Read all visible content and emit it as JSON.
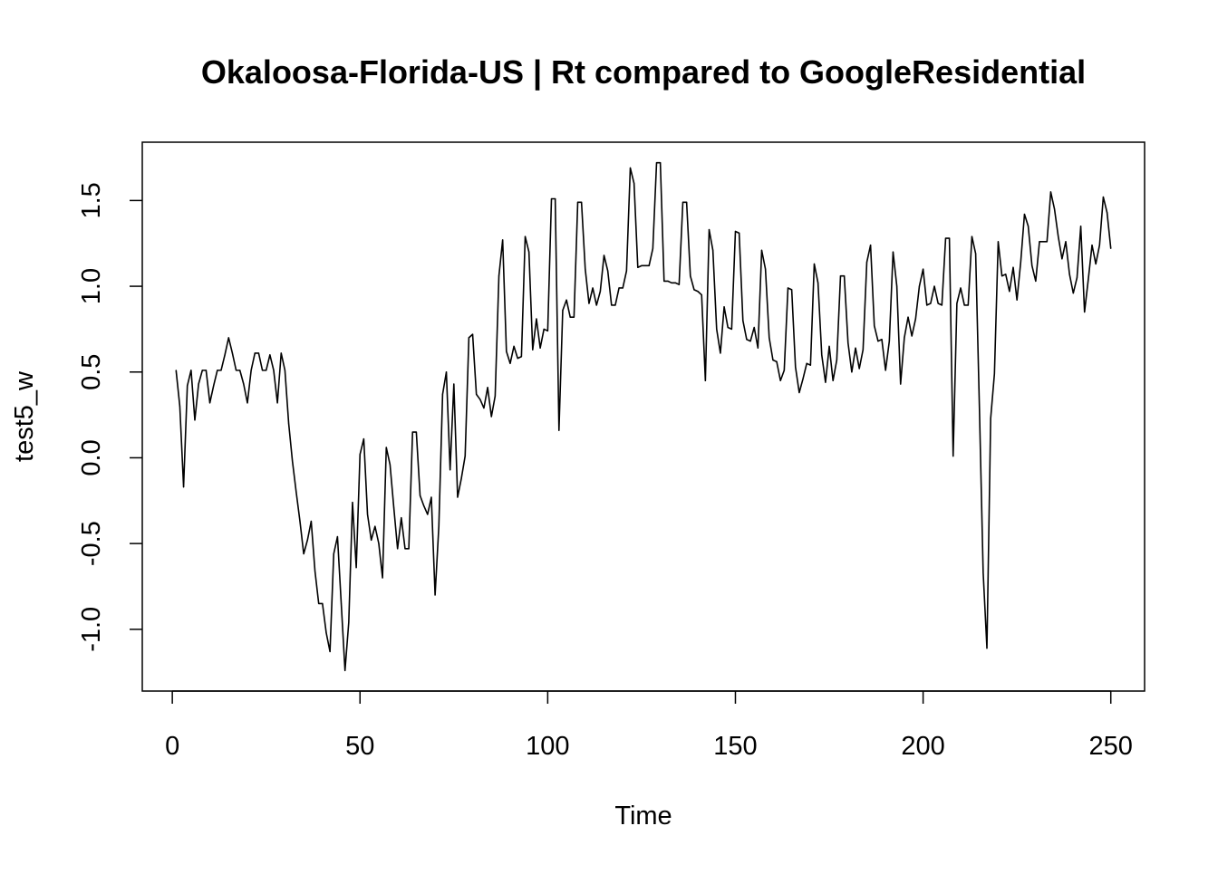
{
  "chart_data": {
    "type": "line",
    "title": "Okaloosa-Florida-US | Rt compared to GoogleResidential",
    "xlabel": "Time",
    "ylabel": "test5_w",
    "xlim": [
      -8,
      259
    ],
    "ylim": [
      -1.36,
      1.84
    ],
    "x_ticks": [
      0,
      50,
      100,
      150,
      200,
      250
    ],
    "y_ticks": [
      -1.0,
      -0.5,
      0.0,
      0.5,
      1.0,
      1.5
    ],
    "x_tick_labels": [
      "0",
      "50",
      "100",
      "150",
      "200",
      "250"
    ],
    "y_tick_labels": [
      "-1.0",
      "-0.5",
      "0.0",
      "0.5",
      "1.0",
      "1.5"
    ],
    "grid": false,
    "line_color": "#000000",
    "series": [
      {
        "x_start": 1,
        "values": [
          0.51,
          0.3,
          -0.17,
          0.42,
          0.51,
          0.22,
          0.43,
          0.51,
          0.51,
          0.32,
          0.42,
          0.51,
          0.51,
          0.6,
          0.7,
          0.61,
          0.51,
          0.51,
          0.43,
          0.32,
          0.51,
          0.61,
          0.61,
          0.51,
          0.51,
          0.6,
          0.51,
          0.32,
          0.61,
          0.51,
          0.2,
          -0.02,
          -0.2,
          -0.37,
          -0.56,
          -0.48,
          -0.37,
          -0.66,
          -0.85,
          -0.85,
          -1.02,
          -1.13,
          -0.56,
          -0.46,
          -0.85,
          -1.24,
          -0.96,
          -0.26,
          -0.64,
          0.02,
          0.11,
          -0.33,
          -0.48,
          -0.4,
          -0.5,
          -0.7,
          0.06,
          -0.04,
          -0.29,
          -0.53,
          -0.35,
          -0.53,
          -0.53,
          0.15,
          0.15,
          -0.22,
          -0.28,
          -0.33,
          -0.23,
          -0.8,
          -0.4,
          0.37,
          0.5,
          -0.07,
          0.43,
          -0.23,
          -0.12,
          0.01,
          0.7,
          0.72,
          0.37,
          0.34,
          0.29,
          0.41,
          0.24,
          0.36,
          1.06,
          1.27,
          0.62,
          0.55,
          0.65,
          0.58,
          0.59,
          1.29,
          1.2,
          0.63,
          0.81,
          0.64,
          0.75,
          0.74,
          1.51,
          1.51,
          0.16,
          0.86,
          0.92,
          0.82,
          0.82,
          1.49,
          1.49,
          1.1,
          0.9,
          0.99,
          0.89,
          0.97,
          1.18,
          1.09,
          0.89,
          0.89,
          0.99,
          0.99,
          1.09,
          1.69,
          1.6,
          1.11,
          1.12,
          1.12,
          1.12,
          1.22,
          1.72,
          1.72,
          1.03,
          1.03,
          1.02,
          1.02,
          1.01,
          1.49,
          1.49,
          1.06,
          0.98,
          0.97,
          0.95,
          0.45,
          1.33,
          1.21,
          0.75,
          0.61,
          0.88,
          0.76,
          0.75,
          1.32,
          1.31,
          0.8,
          0.69,
          0.68,
          0.76,
          0.64,
          1.21,
          1.1,
          0.7,
          0.57,
          0.56,
          0.45,
          0.51,
          0.99,
          0.98,
          0.53,
          0.38,
          0.46,
          0.55,
          0.54,
          1.13,
          1.02,
          0.6,
          0.44,
          0.65,
          0.45,
          0.57,
          1.06,
          1.06,
          0.67,
          0.5,
          0.64,
          0.52,
          0.63,
          1.14,
          1.24,
          0.77,
          0.68,
          0.69,
          0.51,
          0.68,
          1.2,
          1.0,
          0.43,
          0.7,
          0.82,
          0.71,
          0.81,
          1.0,
          1.1,
          0.89,
          0.9,
          1.0,
          0.9,
          0.89,
          1.28,
          1.28,
          0.01,
          0.9,
          0.99,
          0.89,
          0.89,
          1.29,
          1.19,
          0.29,
          -0.67,
          -1.11,
          0.23,
          0.49,
          1.26,
          1.06,
          1.07,
          0.97,
          1.11,
          0.92,
          1.14,
          1.42,
          1.35,
          1.12,
          1.03,
          1.26,
          1.26,
          1.26,
          1.55,
          1.45,
          1.29,
          1.16,
          1.26,
          1.07,
          0.96,
          1.05,
          1.35,
          0.85,
          1.04,
          1.24,
          1.13,
          1.24,
          1.52,
          1.43,
          1.22
        ]
      }
    ]
  }
}
